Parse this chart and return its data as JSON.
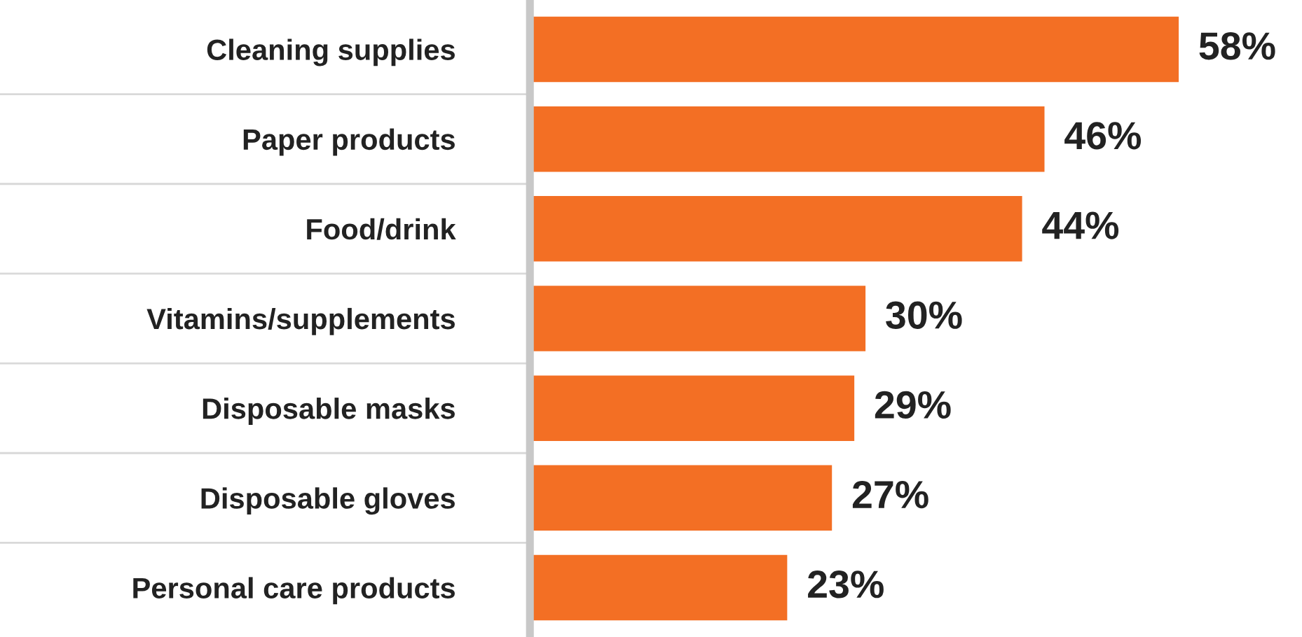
{
  "chart_data": {
    "type": "bar",
    "orientation": "horizontal",
    "categories": [
      "Cleaning supplies",
      "Paper products",
      "Food/drink",
      "Vitamins/supplements",
      "Disposable masks",
      "Disposable gloves",
      "Personal care products"
    ],
    "values": [
      58,
      46,
      44,
      30,
      29,
      27,
      23
    ],
    "value_labels": [
      "58%",
      "46%",
      "44%",
      "30%",
      "29%",
      "27%",
      "23%"
    ],
    "color": "#f36f24",
    "grid": false,
    "legend": false
  }
}
